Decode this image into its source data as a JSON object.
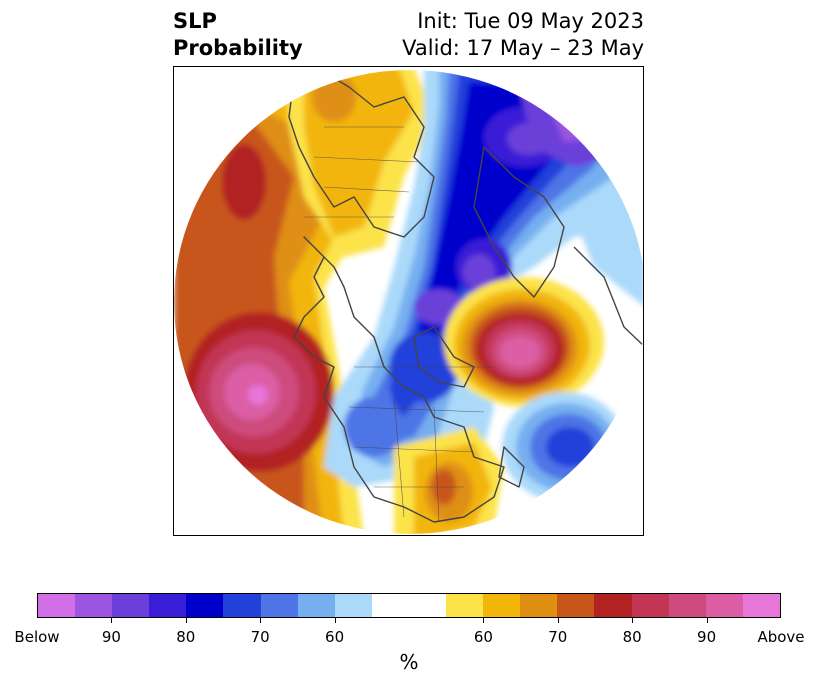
{
  "header": {
    "title_line1": "SLP",
    "title_line2": "Probability",
    "init_text": "Init: Tue 09 May 2023",
    "valid_text": "Valid: 17 May – 23 May"
  },
  "colorbar": {
    "unit": "%",
    "below_colors": [
      "#d36fe6",
      "#9c55e0",
      "#6b3fd9",
      "#3a1dd6",
      "#0000cd",
      "#2440da",
      "#4e74e6",
      "#76aff0",
      "#aad9fa"
    ],
    "gap_color": "#ffffff",
    "above_colors": [
      "#fce34a",
      "#f2b50a",
      "#df8f12",
      "#c8561a",
      "#b22222",
      "#c23555",
      "#ce4b7d",
      "#dc5ea5",
      "#e676d8"
    ],
    "tick_labels": [
      "Below",
      "90",
      "80",
      "70",
      "60",
      "60",
      "70",
      "80",
      "90",
      "Above"
    ]
  },
  "map": {
    "description_colors": {
      "pacific_high_core": "#dc5ea5",
      "atlantic_high_core": "#dc5ea5",
      "arctic_low_core": "#9c55e0",
      "coastline": "#444444"
    }
  }
}
